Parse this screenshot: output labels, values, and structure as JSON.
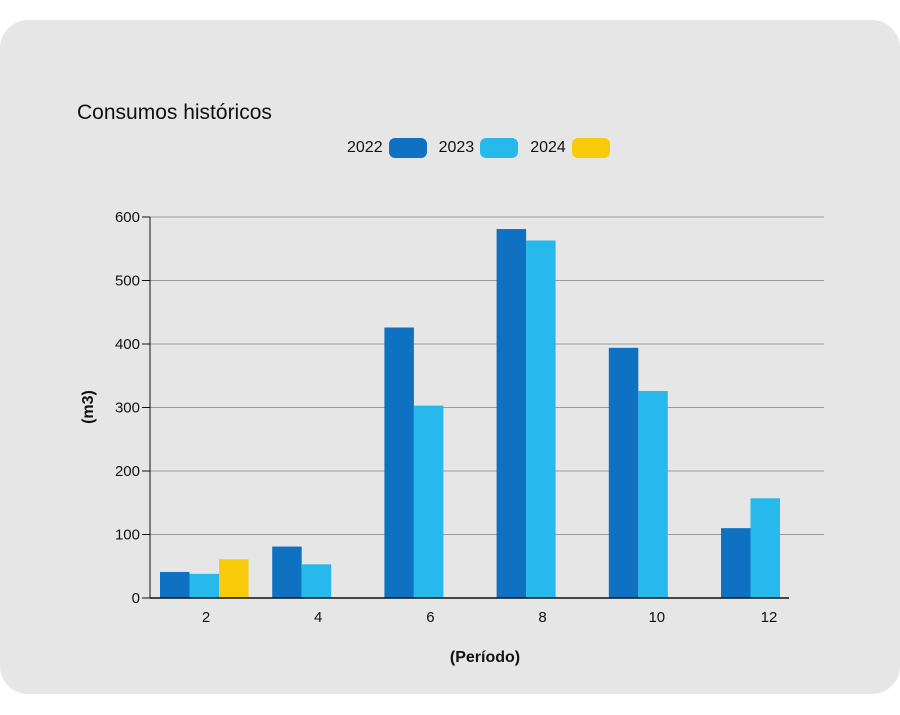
{
  "chart_data": {
    "type": "bar",
    "title": "Consumos históricos",
    "xlabel": "(Período)",
    "ylabel": "(m3)",
    "ylim": [
      0,
      600
    ],
    "yticks": [
      0,
      100,
      200,
      300,
      400,
      500,
      600
    ],
    "categories": [
      "2",
      "4",
      "6",
      "8",
      "10",
      "12"
    ],
    "grid": true,
    "legend_position": "top-center",
    "series": [
      {
        "name": "2022",
        "color": "#0f71c1",
        "values": [
          41,
          81,
          426,
          581,
          394,
          110
        ]
      },
      {
        "name": "2023",
        "color": "#27b8ec",
        "values": [
          38,
          53,
          303,
          563,
          326,
          157
        ]
      },
      {
        "name": "2024",
        "color": "#f8cb0a",
        "values": [
          61,
          null,
          null,
          null,
          null,
          null
        ]
      }
    ]
  }
}
